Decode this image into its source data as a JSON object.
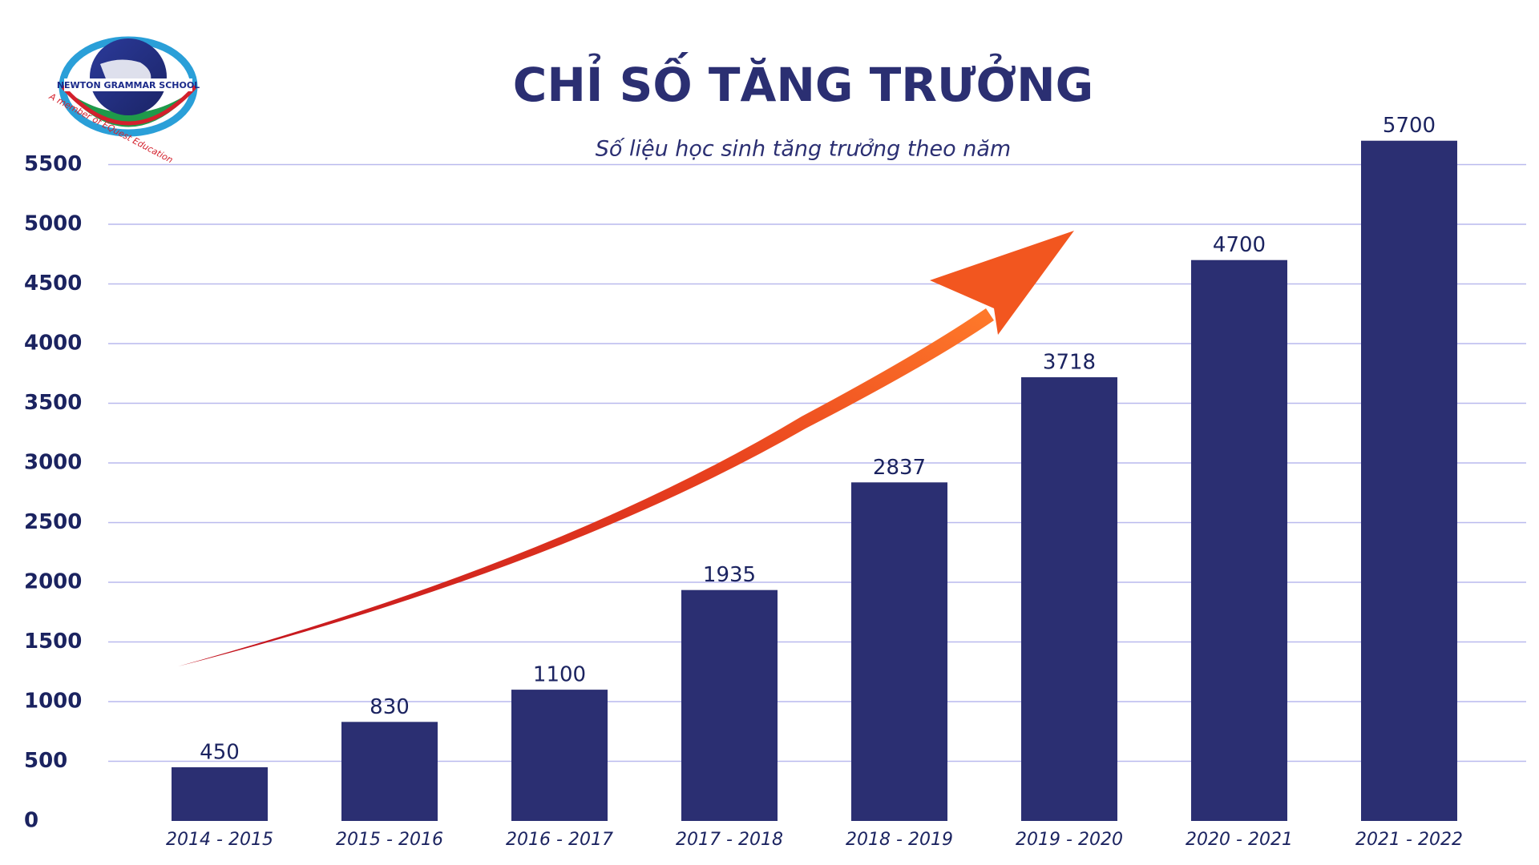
{
  "logo": {
    "name": "NEWTON GRAMMAR SCHOOL",
    "tagline": "A member of EQuest Education"
  },
  "chart_data": {
    "type": "bar",
    "title": "CHỈ SỐ TĂNG TRƯỞNG",
    "subtitle": "Số liệu học sinh tăng trưởng theo năm",
    "categories": [
      "2014 - 2015",
      "2015 - 2016",
      "2016 - 2017",
      "2017 - 2018",
      "2018 - 2019",
      "2019 - 2020",
      "2020 - 2021",
      "2021 - 2022"
    ],
    "values": [
      450,
      830,
      1100,
      1935,
      2837,
      3718,
      4700,
      5700
    ],
    "color": "#2b2f72",
    "ylim": [
      0,
      6000
    ],
    "yticks": [
      0,
      500,
      1000,
      1500,
      2000,
      2500,
      3000,
      3500,
      4000,
      4500,
      5000,
      5500
    ],
    "grid": true
  }
}
